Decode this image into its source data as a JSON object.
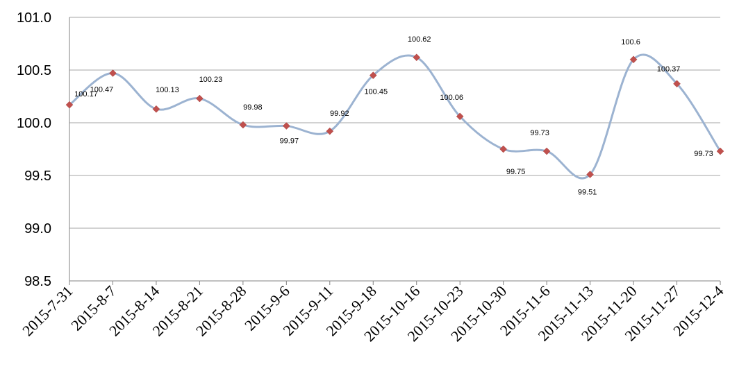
{
  "chart_data": {
    "type": "line",
    "title": "",
    "xlabel": "",
    "ylabel": "",
    "ylim": [
      98.5,
      101.0
    ],
    "yticks": [
      "101.0",
      "100.5",
      "100.0",
      "99.5",
      "99.0",
      "98.5"
    ],
    "grid": true,
    "legend": "none",
    "categories": [
      "2015-7-31",
      "2015-8-7",
      "2015-8-14",
      "2015-8-21",
      "2015-8-28",
      "2015-9-6",
      "2015-9-11",
      "2015-9-18",
      "2015-10-16",
      "2015-10-23",
      "2015-10-30",
      "2015-11-6",
      "2015-11-13",
      "2015-11-20",
      "2015-11-27",
      "2015-12-4"
    ],
    "series": [
      {
        "values": [
          100.17,
          100.47,
          100.13,
          100.23,
          99.98,
          99.97,
          99.92,
          100.45,
          100.62,
          100.06,
          99.75,
          99.73,
          99.51,
          100.6,
          100.37,
          99.73
        ],
        "data_labels": [
          "100.17",
          "100.47",
          "100.13",
          "100.23",
          "99.98",
          "99.97",
          "99.92",
          "100.45",
          "100.62",
          "100.06",
          "99.75",
          "99.73",
          "99.51",
          "100.6",
          "100.37",
          "99.73"
        ],
        "line_color": "#9cb3d1",
        "marker_color": "#c0504d",
        "smooth": true
      }
    ]
  }
}
